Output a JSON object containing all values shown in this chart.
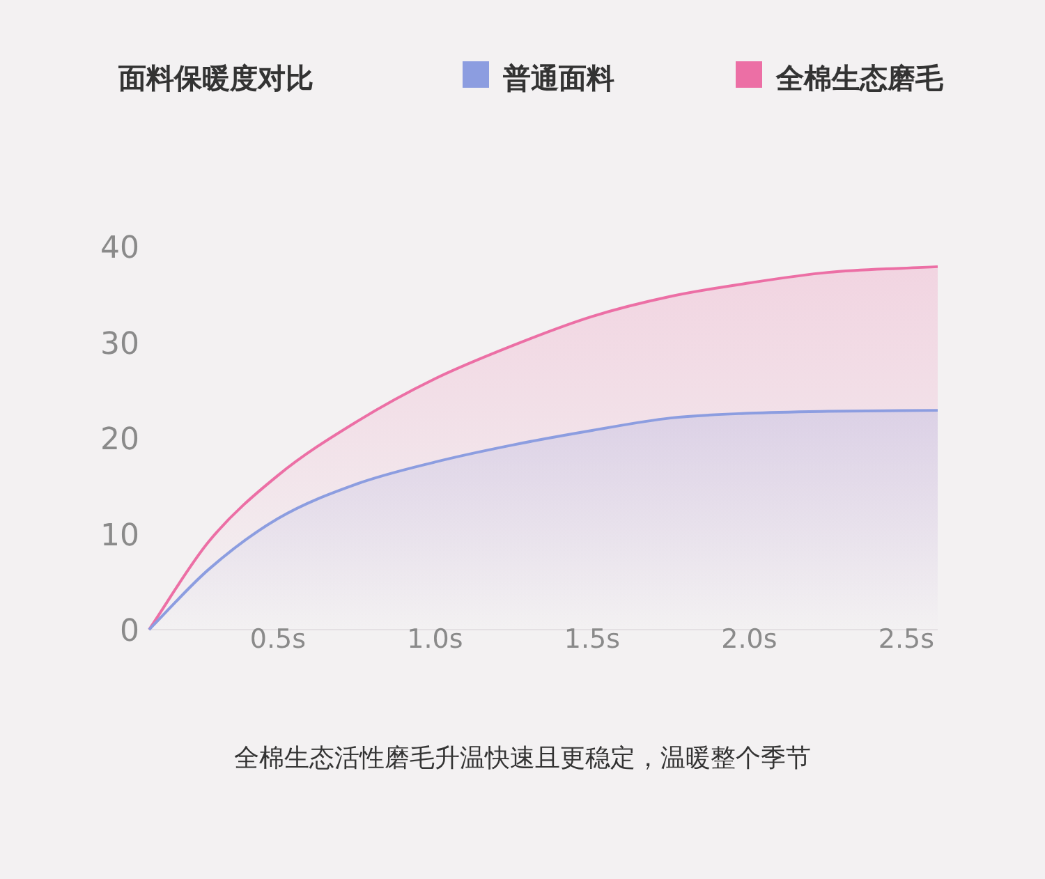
{
  "chart_data": {
    "type": "area",
    "title": "面料保暖度对比",
    "legend": "top",
    "x": [
      0.09,
      0.28,
      0.5,
      0.75,
      1.0,
      1.25,
      1.5,
      1.75,
      2.0,
      2.25,
      2.6
    ],
    "series": [
      {
        "name": "普通面料",
        "color": "#8c9de0",
        "values": [
          0,
          6.3,
          11.6,
          15.2,
          17.5,
          19.3,
          20.8,
          22.1,
          22.6,
          22.8,
          22.9
        ]
      },
      {
        "name": "全棉生态磨毛",
        "color": "#ec6fa5",
        "values": [
          0,
          9.2,
          16.1,
          21.7,
          26.2,
          29.7,
          32.7,
          34.8,
          36.2,
          37.3,
          37.9
        ]
      }
    ],
    "xlim": [
      0.09,
      2.6
    ],
    "xticks": [
      {
        "value": 0.5,
        "label": "0.5s"
      },
      {
        "value": 1.0,
        "label": "1.0s"
      },
      {
        "value": 1.5,
        "label": "1.5s"
      },
      {
        "value": 2.0,
        "label": "2.0s"
      },
      {
        "value": 2.5,
        "label": "2.5s"
      }
    ],
    "ylim": [
      0,
      40
    ],
    "yticks": [
      0,
      10,
      20,
      30,
      40
    ],
    "annotations": [
      "全棉生态活性磨毛升温快速且更稳定，温暖整个季节"
    ]
  }
}
